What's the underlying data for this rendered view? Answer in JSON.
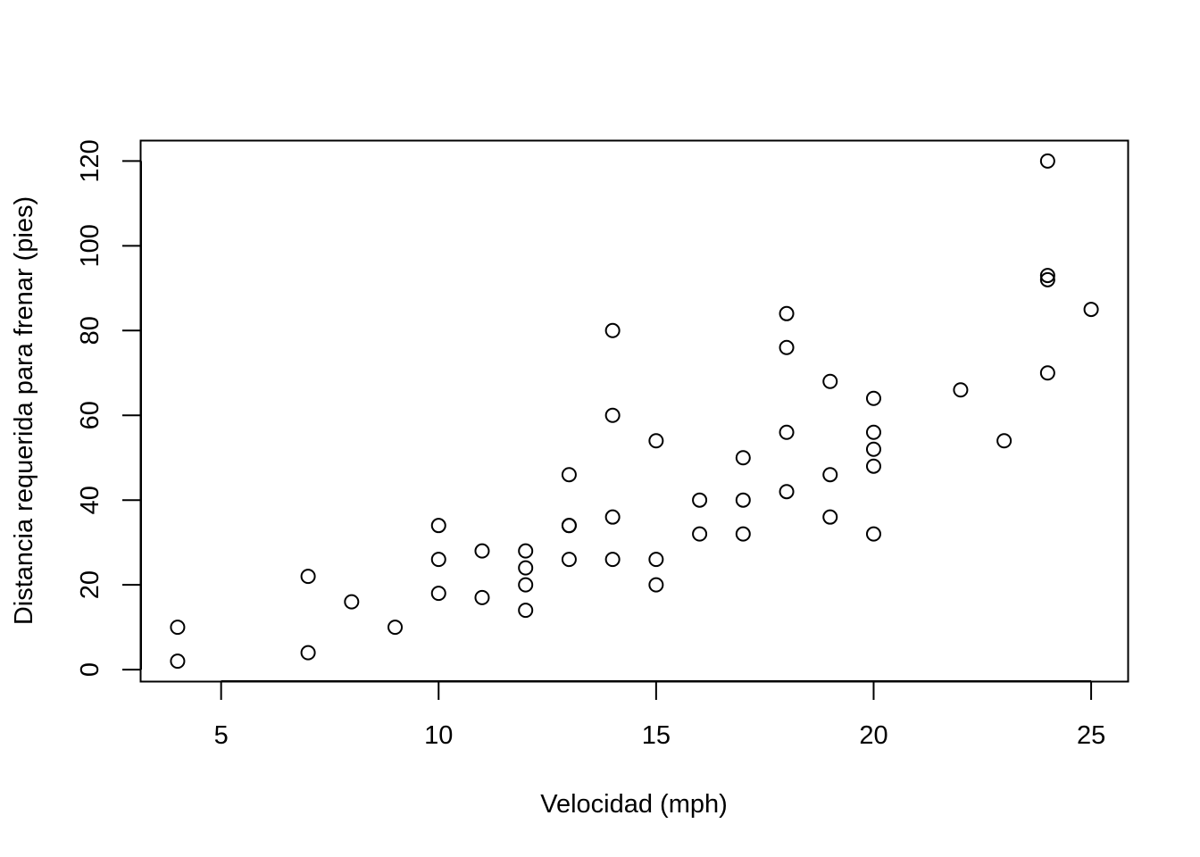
{
  "chart_data": {
    "type": "scatter",
    "title": "",
    "xlabel": "Velocidad (mph)",
    "ylabel": "Distancia requerida para frenar (pies)",
    "xlim": [
      3.16,
      25.84
    ],
    "ylim": [
      -2.72,
      124.72
    ],
    "xticks": [
      "5",
      "10",
      "15",
      "20",
      "25"
    ],
    "yticks": [
      "0",
      "20",
      "40",
      "60",
      "80",
      "100",
      "120"
    ],
    "grid": false,
    "legend": "none",
    "marker": "open-circle",
    "color": "#000000",
    "points": [
      {
        "x": 4,
        "y": 2
      },
      {
        "x": 4,
        "y": 10
      },
      {
        "x": 7,
        "y": 4
      },
      {
        "x": 7,
        "y": 22
      },
      {
        "x": 8,
        "y": 16
      },
      {
        "x": 9,
        "y": 10
      },
      {
        "x": 10,
        "y": 18
      },
      {
        "x": 10,
        "y": 26
      },
      {
        "x": 10,
        "y": 34
      },
      {
        "x": 11,
        "y": 17
      },
      {
        "x": 11,
        "y": 28
      },
      {
        "x": 12,
        "y": 14
      },
      {
        "x": 12,
        "y": 20
      },
      {
        "x": 12,
        "y": 24
      },
      {
        "x": 12,
        "y": 28
      },
      {
        "x": 13,
        "y": 26
      },
      {
        "x": 13,
        "y": 34
      },
      {
        "x": 13,
        "y": 34
      },
      {
        "x": 13,
        "y": 46
      },
      {
        "x": 14,
        "y": 26
      },
      {
        "x": 14,
        "y": 36
      },
      {
        "x": 14,
        "y": 60
      },
      {
        "x": 14,
        "y": 80
      },
      {
        "x": 15,
        "y": 20
      },
      {
        "x": 15,
        "y": 26
      },
      {
        "x": 15,
        "y": 54
      },
      {
        "x": 16,
        "y": 32
      },
      {
        "x": 16,
        "y": 40
      },
      {
        "x": 17,
        "y": 32
      },
      {
        "x": 17,
        "y": 40
      },
      {
        "x": 17,
        "y": 50
      },
      {
        "x": 18,
        "y": 42
      },
      {
        "x": 18,
        "y": 56
      },
      {
        "x": 18,
        "y": 76
      },
      {
        "x": 18,
        "y": 84
      },
      {
        "x": 19,
        "y": 36
      },
      {
        "x": 19,
        "y": 46
      },
      {
        "x": 19,
        "y": 68
      },
      {
        "x": 20,
        "y": 32
      },
      {
        "x": 20,
        "y": 48
      },
      {
        "x": 20,
        "y": 52
      },
      {
        "x": 20,
        "y": 56
      },
      {
        "x": 20,
        "y": 64
      },
      {
        "x": 22,
        "y": 66
      },
      {
        "x": 23,
        "y": 54
      },
      {
        "x": 24,
        "y": 70
      },
      {
        "x": 24,
        "y": 92
      },
      {
        "x": 24,
        "y": 93
      },
      {
        "x": 24,
        "y": 120
      },
      {
        "x": 25,
        "y": 85
      }
    ]
  }
}
